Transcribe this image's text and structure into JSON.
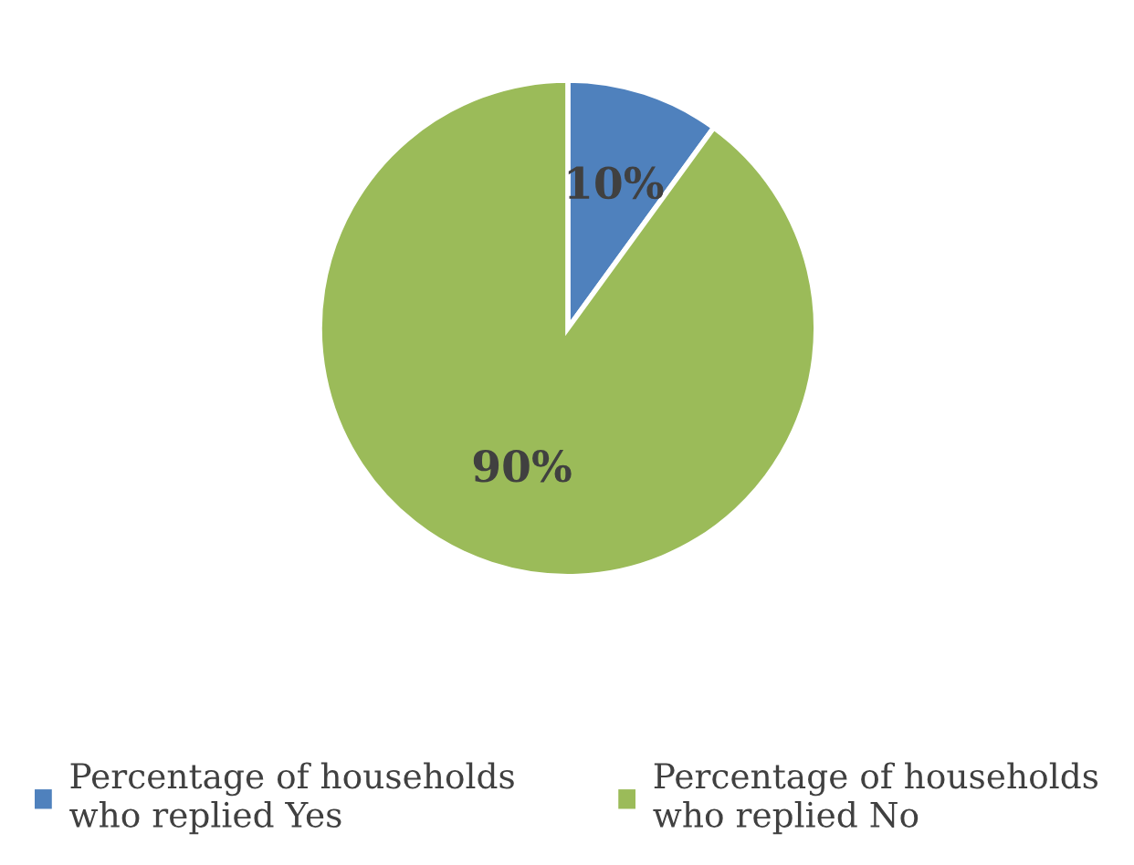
{
  "chart_data": {
    "type": "pie",
    "categories": [
      "Percentage of households who replied Yes",
      "Percentage of households who replied No"
    ],
    "values": [
      10,
      90
    ],
    "colors": [
      "#4f81bd",
      "#9bbb59"
    ],
    "value_labels": [
      "10%",
      "90%"
    ],
    "legend": "bottom"
  }
}
